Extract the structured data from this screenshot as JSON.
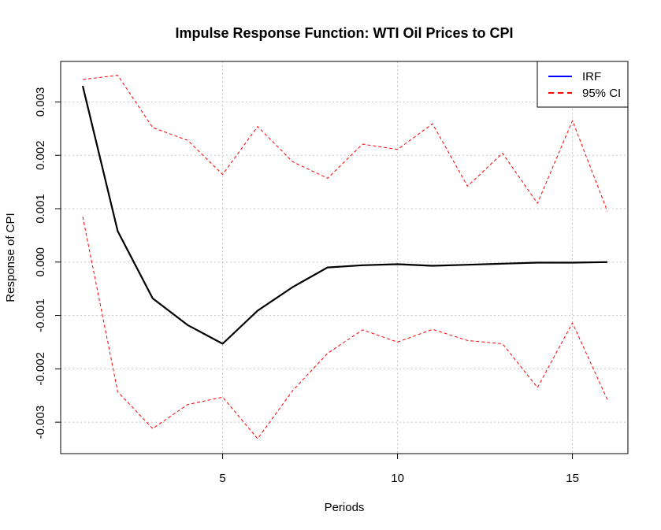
{
  "chart_data": {
    "type": "line",
    "title": "Impulse Response Function: WTI Oil Prices to CPI",
    "xlabel": "Periods",
    "ylabel": "Response of CPI",
    "xlim": [
      1,
      16
    ],
    "ylim": [
      -0.0035,
      0.0037
    ],
    "x_ticks": [
      5,
      10,
      15
    ],
    "y_ticks": [
      -0.003,
      -0.002,
      -0.001,
      0.0,
      0.001,
      0.002,
      0.003
    ],
    "x_tick_labels": [
      "5",
      "10",
      "15"
    ],
    "y_tick_labels": [
      "-0.003",
      "-0.002",
      "-0.001",
      "0.000",
      "0.001",
      "0.002",
      "0.003"
    ],
    "grid": true,
    "legend_position": "top-right",
    "x": [
      1,
      2,
      3,
      4,
      5,
      6,
      7,
      8,
      9,
      10,
      11,
      12,
      13,
      14,
      15,
      16
    ],
    "series": [
      {
        "name": "IRF",
        "legend_color": "#0000ff",
        "color": "#000000",
        "style": "solid",
        "values": [
          0.0033,
          0.00058,
          -0.00068,
          -0.00118,
          -0.00153,
          -0.00091,
          -0.00047,
          -0.0001,
          -6e-05,
          -4e-05,
          -7e-05,
          -5e-05,
          -3e-05,
          -1e-05,
          -1e-05,
          0.0
        ]
      },
      {
        "name": "95% CI",
        "legend_color": "#ff0000",
        "color": "#ff0000",
        "style": "dashed",
        "values": [
          0.00342,
          0.0035,
          0.00252,
          0.00228,
          0.00164,
          0.00254,
          0.00188,
          0.00157,
          0.00221,
          0.00211,
          0.00259,
          0.00142,
          0.00204,
          0.0011,
          0.00265,
          0.00095
        ]
      },
      {
        "name": "",
        "color": "#ff0000",
        "style": "dashed",
        "values": [
          0.00085,
          -0.00243,
          -0.00312,
          -0.00267,
          -0.00253,
          -0.00331,
          -0.00241,
          -0.00171,
          -0.00127,
          -0.0015,
          -0.00126,
          -0.00147,
          -0.00153,
          -0.00235,
          -0.00114,
          -0.00258
        ]
      }
    ]
  }
}
